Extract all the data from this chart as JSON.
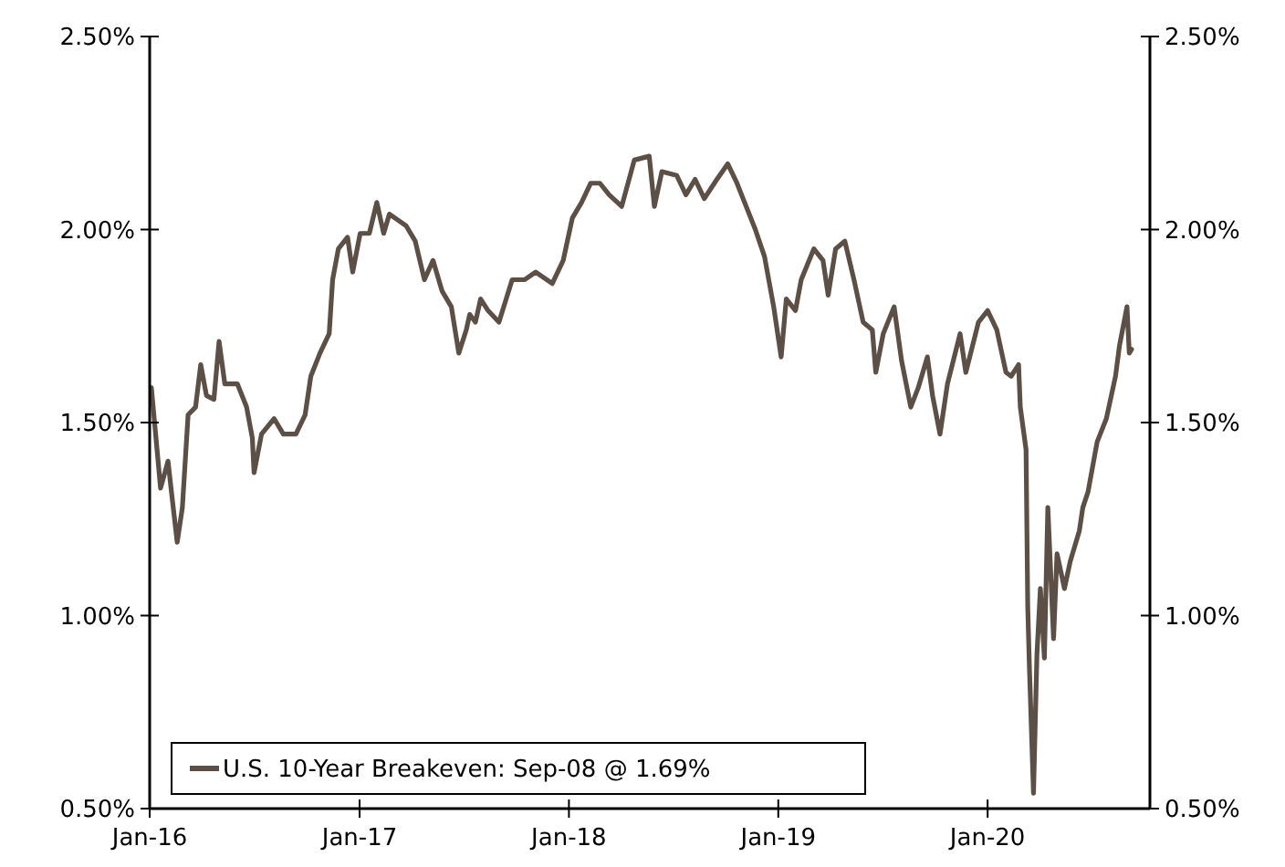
{
  "chart_data": {
    "type": "line",
    "xlim": [
      "2016-01-01",
      "2020-10-10"
    ],
    "xticks": [
      {
        "value": "2016-01-01",
        "label": "Jan-16"
      },
      {
        "value": "2017-01-01",
        "label": "Jan-17"
      },
      {
        "value": "2018-01-01",
        "label": "Jan-18"
      },
      {
        "value": "2019-01-01",
        "label": "Jan-19"
      },
      {
        "value": "2020-01-01",
        "label": "Jan-20"
      }
    ],
    "ylim": [
      0.5,
      2.5
    ],
    "yticks": [
      {
        "value": 0.5,
        "label": "0.50%"
      },
      {
        "value": 1,
        "label": "1.00%"
      },
      {
        "value": 1.5,
        "label": "1.50%"
      },
      {
        "value": 2,
        "label": "2.00%"
      },
      {
        "value": 2.5,
        "label": "2.50%"
      }
    ],
    "y2lim": [
      0.5,
      2.5
    ],
    "y2ticks": [
      {
        "value": 0.5,
        "label": "0.50%"
      },
      {
        "value": 1,
        "label": "1.00%"
      },
      {
        "value": 1.5,
        "label": "1.50%"
      },
      {
        "value": 2,
        "label": "2.00%"
      },
      {
        "value": 2.5,
        "label": "2.50%"
      }
    ],
    "grid": false,
    "legend": "bottom left",
    "marker": "none",
    "line_style": "solid",
    "series": [
      {
        "name": "U.S. 10-Year Breakeven: Sep-08 @ 1.69%",
        "color": "#5c5046",
        "x": [
          "2016-01-04",
          "2016-01-20",
          "2016-02-02",
          "2016-02-08",
          "2016-02-18",
          "2016-02-27",
          "2016-03-08",
          "2016-03-21",
          "2016-03-30",
          "2016-04-09",
          "2016-04-22",
          "2016-05-01",
          "2016-05-11",
          "2016-06-02",
          "2016-06-18",
          "2016-06-28",
          "2016-07-01",
          "2016-07-14",
          "2016-08-05",
          "2016-08-21",
          "2016-09-12",
          "2016-09-28",
          "2016-10-08",
          "2016-10-24",
          "2016-11-09",
          "2016-11-15",
          "2016-11-25",
          "2016-12-11",
          "2016-12-20",
          "2017-01-02",
          "2017-01-18",
          "2017-01-31",
          "2017-02-12",
          "2017-02-22",
          "2017-03-23",
          "2017-04-08",
          "2017-04-24",
          "2017-05-09",
          "2017-05-25",
          "2017-06-10",
          "2017-06-23",
          "2017-07-06",
          "2017-07-12",
          "2017-07-22",
          "2017-07-31",
          "2017-08-13",
          "2017-09-01",
          "2017-09-24",
          "2017-10-16",
          "2017-11-04",
          "2017-12-03",
          "2017-12-22",
          "2018-01-07",
          "2018-01-23",
          "2018-02-08",
          "2018-02-24",
          "2018-03-12",
          "2018-04-03",
          "2018-04-25",
          "2018-05-21",
          "2018-05-30",
          "2018-06-12",
          "2018-07-08",
          "2018-07-24",
          "2018-08-09",
          "2018-08-25",
          "2018-09-16",
          "2018-10-05",
          "2018-10-21",
          "2018-11-06",
          "2018-11-22",
          "2018-12-08",
          "2018-12-24",
          "2019-01-06",
          "2019-01-15",
          "2019-01-31",
          "2019-02-10",
          "2019-03-04",
          "2019-03-20",
          "2019-03-29",
          "2019-04-11",
          "2019-04-27",
          "2019-05-13",
          "2019-05-29",
          "2019-06-14",
          "2019-06-20",
          "2019-07-03",
          "2019-07-22",
          "2019-08-04",
          "2019-08-20",
          "2019-09-02",
          "2019-09-18",
          "2019-09-27",
          "2019-10-10",
          "2019-10-23",
          "2019-11-14",
          "2019-11-24",
          "2019-12-16",
          "2020-01-01",
          "2020-01-17",
          "2020-02-02",
          "2020-02-11",
          "2020-02-24",
          "2020-02-27",
          "2020-03-08",
          "2020-03-11",
          "2020-03-14",
          "2020-03-21",
          "2020-03-27",
          "2020-04-02",
          "2020-04-09",
          "2020-04-15",
          "2020-04-25",
          "2020-05-01",
          "2020-05-14",
          "2020-05-24",
          "2020-06-09",
          "2020-06-15",
          "2020-06-24",
          "2020-07-10",
          "2020-07-26",
          "2020-08-11",
          "2020-08-18",
          "2020-08-31",
          "2020-09-04",
          "2020-09-08"
        ],
        "values": [
          1.59,
          1.33,
          1.4,
          1.32,
          1.19,
          1.28,
          1.52,
          1.54,
          1.65,
          1.57,
          1.56,
          1.71,
          1.6,
          1.6,
          1.54,
          1.46,
          1.37,
          1.47,
          1.51,
          1.47,
          1.47,
          1.52,
          1.62,
          1.68,
          1.73,
          1.87,
          1.95,
          1.98,
          1.89,
          1.99,
          1.99,
          2.07,
          1.99,
          2.04,
          2.01,
          1.97,
          1.87,
          1.92,
          1.84,
          1.8,
          1.68,
          1.74,
          1.78,
          1.76,
          1.82,
          1.79,
          1.76,
          1.87,
          1.87,
          1.89,
          1.86,
          1.92,
          2.03,
          2.07,
          2.12,
          2.12,
          2.09,
          2.06,
          2.18,
          2.19,
          2.06,
          2.15,
          2.14,
          2.09,
          2.13,
          2.08,
          2.13,
          2.17,
          2.12,
          2.06,
          2.0,
          1.93,
          1.8,
          1.67,
          1.82,
          1.79,
          1.87,
          1.95,
          1.92,
          1.83,
          1.95,
          1.97,
          1.87,
          1.76,
          1.74,
          1.63,
          1.73,
          1.8,
          1.66,
          1.54,
          1.59,
          1.67,
          1.57,
          1.47,
          1.6,
          1.73,
          1.63,
          1.76,
          1.79,
          1.74,
          1.63,
          1.62,
          1.65,
          1.54,
          1.43,
          1.02,
          0.86,
          0.54,
          0.9,
          1.07,
          0.89,
          1.28,
          0.94,
          1.16,
          1.07,
          1.14,
          1.22,
          1.28,
          1.32,
          1.45,
          1.51,
          1.62,
          1.7,
          1.8,
          1.68,
          1.69
        ]
      }
    ]
  }
}
